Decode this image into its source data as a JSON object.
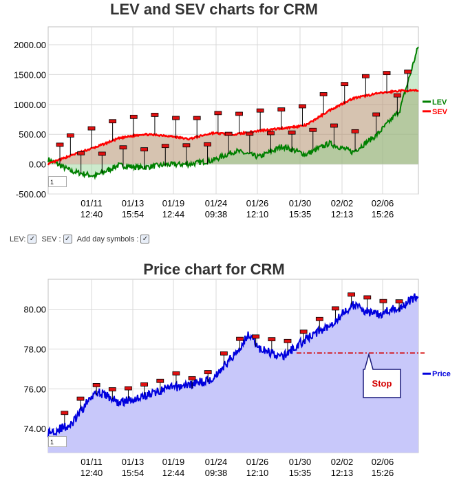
{
  "colors": {
    "lev": "#008000",
    "sev": "#ff0000",
    "price": "#0000dd",
    "stop": "#d40000"
  },
  "chart_data": [
    {
      "type": "line",
      "title": "LEV and SEV charts for CRM",
      "ylim": [
        -500,
        2300
      ],
      "y_ticks": [
        "-500.00",
        "0.00",
        "500.00",
        "1000.00",
        "1500.00",
        "2000.00"
      ],
      "x_ticks": [
        [
          "01/11",
          "12:40"
        ],
        [
          "01/13",
          "15:54"
        ],
        [
          "01/19",
          "12:44"
        ],
        [
          "01/24",
          "09:38"
        ],
        [
          "01/26",
          "12:10"
        ],
        [
          "01/30",
          "15:35"
        ],
        [
          "02/02",
          "12:13"
        ],
        [
          "02/06",
          "15:26"
        ]
      ],
      "series": [
        {
          "name": "LEV",
          "x": [
            0,
            0.5,
            1,
            1.5,
            2,
            2.5,
            3,
            3.5,
            4,
            4.5,
            5,
            5.5,
            6,
            6.5,
            7,
            7.5,
            7.9
          ],
          "values": [
            80,
            -120,
            -200,
            -20,
            -60,
            -10,
            0,
            60,
            220,
            120,
            300,
            160,
            350,
            200,
            480,
            900,
            1980
          ]
        },
        {
          "name": "SEV",
          "x": [
            0,
            0.5,
            1,
            1.5,
            2,
            2.5,
            3,
            3.5,
            4,
            4.5,
            5,
            5.5,
            6,
            6.5,
            7,
            7.5,
            7.9
          ],
          "values": [
            0,
            150,
            280,
            430,
            500,
            480,
            420,
            520,
            500,
            560,
            600,
            650,
            900,
            1100,
            1180,
            1230,
            1230
          ]
        }
      ],
      "zoom_value": "1",
      "grid": true,
      "legend_position": "right"
    },
    {
      "type": "line",
      "title": "Price chart for CRM",
      "ylim": [
        72.8,
        81.5
      ],
      "y_ticks": [
        "74.00",
        "76.00",
        "78.00",
        "80.00"
      ],
      "x_ticks": [
        [
          "01/11",
          "12:40"
        ],
        [
          "01/13",
          "15:54"
        ],
        [
          "01/19",
          "12:44"
        ],
        [
          "01/24",
          "09:38"
        ],
        [
          "01/26",
          "12:10"
        ],
        [
          "01/30",
          "15:35"
        ],
        [
          "02/02",
          "12:13"
        ],
        [
          "02/06",
          "15:26"
        ]
      ],
      "series": [
        {
          "name": "Price",
          "x": [
            0,
            0.5,
            1,
            1.3,
            1.5,
            2,
            2.5,
            3,
            3.5,
            4,
            4.3,
            4.5,
            5,
            5.5,
            6,
            6.5,
            7,
            7.5,
            7.9
          ],
          "values": [
            73.8,
            74.2,
            75.9,
            75.6,
            75.3,
            75.6,
            76.0,
            76.2,
            76.5,
            77.8,
            78.8,
            78.0,
            77.6,
            78.5,
            79.2,
            80.2,
            79.7,
            80.1,
            80.7
          ]
        }
      ],
      "stop_level": 77.8,
      "stop_label": "Stop",
      "zoom_value": "1",
      "grid": true,
      "legend_position": "right"
    }
  ],
  "controls": {
    "lev_label": "LEV:",
    "sev_label": "SEV :",
    "day_label": "Add day symbols :",
    "check": "✓"
  }
}
